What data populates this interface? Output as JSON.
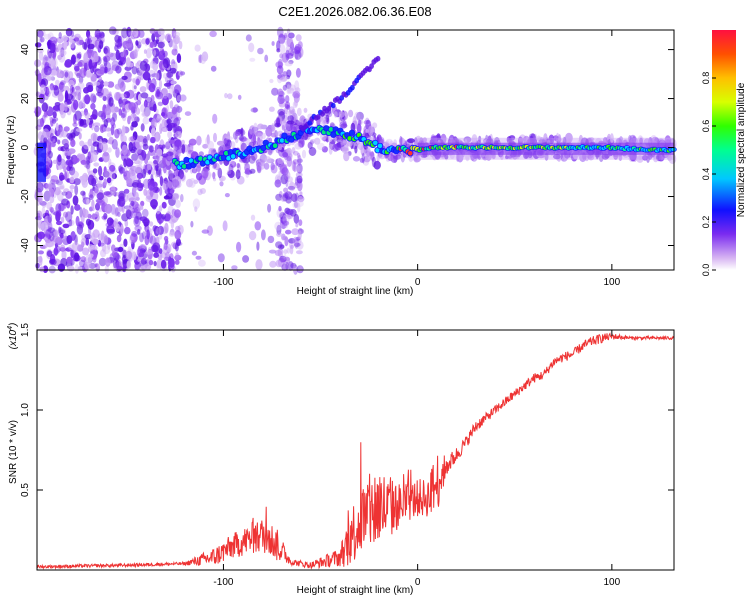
{
  "title": "C2E1.2026.082.06.36.E08",
  "chart_data": [
    {
      "type": "heatmap",
      "xlabel": "Height of straight line (km)",
      "ylabel": "Frequency (Hz)",
      "xlim": [
        -196,
        132
      ],
      "ylim": [
        -50,
        48
      ],
      "x_ticks": [
        -100,
        0,
        100
      ],
      "y_ticks": [
        -40,
        -20,
        0,
        20,
        40
      ],
      "ridge_line": {
        "x": [
          -125,
          -115,
          -100,
          -90,
          -80,
          -70,
          -60,
          -50,
          -45,
          -40,
          -35,
          -30,
          -25,
          -20,
          -15,
          -10,
          -5,
          0,
          10,
          20,
          40,
          60,
          80,
          100,
          120,
          132
        ],
        "y": [
          -7,
          -6,
          -4,
          -2,
          0,
          3,
          6,
          8,
          7,
          6,
          5,
          4,
          2,
          0,
          -1,
          -1,
          -1,
          -1,
          0,
          0,
          0,
          0,
          0,
          0,
          -1,
          -1
        ]
      },
      "branch_line": {
        "x": [
          -60,
          -50,
          -40,
          -35,
          -30,
          -25,
          -20
        ],
        "y": [
          8,
          14,
          20,
          24,
          28,
          32,
          37
        ]
      },
      "colorbar": {
        "label": "Normalized spectral amplitude",
        "range": [
          0,
          1
        ],
        "ticks": [
          "0.0",
          "0.2",
          "0.4",
          "0.6",
          "0.8"
        ],
        "tick_values": [
          0.0,
          0.2,
          0.4,
          0.6,
          0.8
        ]
      }
    },
    {
      "type": "line",
      "xlabel": "Height of straight line (km)",
      "ylabel": "SNR (10 * v/v)",
      "y_multiplier": "(x10",
      "y_multiplier_exp": "4",
      "y_multiplier_close": ")",
      "xlim": [
        -196,
        132
      ],
      "ylim": [
        0,
        1.5
      ],
      "x_ticks": [
        -100,
        0,
        100
      ],
      "y_ticks": [
        0.5,
        1.0,
        1.5
      ],
      "y_tick_labels": [
        "0.5",
        "1.0",
        "1.5"
      ],
      "line_color": "#ee3333",
      "series": [
        {
          "name": "SNR",
          "x": [
            -196,
            -150,
            -120,
            -105,
            -95,
            -85,
            -78,
            -72,
            -65,
            -55,
            -40,
            -35,
            -30,
            -25,
            -20,
            -15,
            -10,
            -5,
            0,
            5,
            10,
            15,
            20,
            25,
            30,
            35,
            40,
            45,
            50,
            55,
            60,
            65,
            70,
            75,
            80,
            85,
            90,
            95,
            100,
            110,
            120,
            132
          ],
          "y": [
            0.02,
            0.03,
            0.04,
            0.08,
            0.15,
            0.2,
            0.22,
            0.15,
            0.05,
            0.03,
            0.08,
            0.2,
            0.3,
            0.35,
            0.4,
            0.38,
            0.4,
            0.42,
            0.45,
            0.45,
            0.55,
            0.65,
            0.72,
            0.8,
            0.9,
            0.95,
            1.0,
            1.05,
            1.1,
            1.15,
            1.2,
            1.22,
            1.3,
            1.33,
            1.35,
            1.4,
            1.43,
            1.45,
            1.46,
            1.45,
            1.45,
            1.45
          ],
          "noise_amplitude": [
            0.01,
            0.01,
            0.01,
            0.06,
            0.08,
            0.1,
            0.12,
            0.1,
            0.02,
            0.02,
            0.06,
            0.18,
            0.22,
            0.25,
            0.28,
            0.2,
            0.15,
            0.12,
            0.12,
            0.12,
            0.2,
            0.06,
            0.05,
            0.04,
            0.04,
            0.03,
            0.03,
            0.03,
            0.03,
            0.03,
            0.03,
            0.03,
            0.03,
            0.03,
            0.03,
            0.03,
            0.03,
            0.03,
            0.02,
            0.01,
            0.01,
            0.01
          ]
        }
      ]
    }
  ]
}
